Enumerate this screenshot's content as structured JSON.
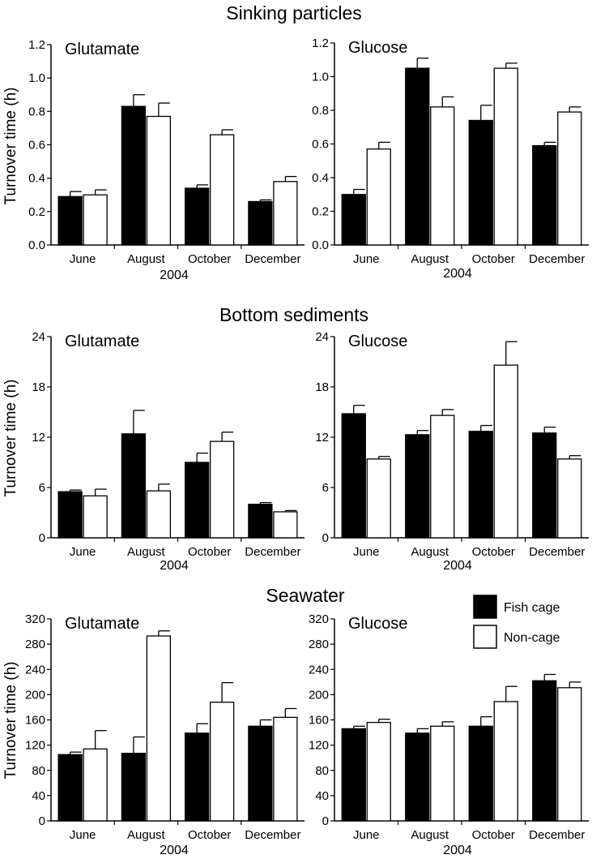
{
  "figure": {
    "rows": [
      {
        "title": "Sinking particles",
        "ylabel": "Turnover time (h)",
        "xlabel": "2004"
      },
      {
        "title": "Bottom sediments",
        "ylabel": "Turnover time (h)",
        "xlabel": "2004"
      },
      {
        "title": "Seawater",
        "ylabel": "Turnover time (h)",
        "xlabel": "2004"
      }
    ],
    "legend": {
      "fish_cage": "Fish cage",
      "non_cage": "Non-cage"
    },
    "colors": {
      "fish_cage": "#000000",
      "non_cage": "#ffffff"
    }
  },
  "chart_data": [
    {
      "type": "bar",
      "title": "Glutamate",
      "row_title": "Sinking particles",
      "ylabel": "Turnover time (h)",
      "xlabel": "2004",
      "categories": [
        "June",
        "August",
        "October",
        "December"
      ],
      "ylim": [
        0,
        1.2
      ],
      "yticks": [
        "0.0",
        "0.2",
        "0.4",
        "0.6",
        "0.8",
        "1.0",
        "1.2"
      ],
      "series": [
        {
          "name": "Fish cage",
          "values": [
            0.29,
            0.83,
            0.34,
            0.26
          ],
          "errors": [
            0.03,
            0.07,
            0.02,
            0.01
          ]
        },
        {
          "name": "Non-cage",
          "values": [
            0.3,
            0.77,
            0.66,
            0.38
          ],
          "errors": [
            0.03,
            0.08,
            0.03,
            0.03
          ]
        }
      ]
    },
    {
      "type": "bar",
      "title": "Glucose",
      "row_title": "Sinking particles",
      "ylabel": "",
      "xlabel": "2004",
      "categories": [
        "June",
        "August",
        "October",
        "December"
      ],
      "ylim": [
        0,
        1.2
      ],
      "yticks": [
        "0.0",
        "0.2",
        "0.4",
        "0.6",
        "0.8",
        "1.0",
        "1.2"
      ],
      "series": [
        {
          "name": "Fish cage",
          "values": [
            0.3,
            1.05,
            0.74,
            0.59
          ],
          "errors": [
            0.03,
            0.06,
            0.09,
            0.02
          ]
        },
        {
          "name": "Non-cage",
          "values": [
            0.57,
            0.82,
            1.05,
            0.79
          ],
          "errors": [
            0.04,
            0.06,
            0.03,
            0.03
          ]
        }
      ]
    },
    {
      "type": "bar",
      "title": "Glutamate",
      "row_title": "Bottom sediments",
      "ylabel": "Turnover time (h)",
      "xlabel": "2004",
      "categories": [
        "June",
        "August",
        "October",
        "December"
      ],
      "ylim": [
        0,
        24
      ],
      "yticks": [
        "0",
        "6",
        "12",
        "18",
        "24"
      ],
      "series": [
        {
          "name": "Fish cage",
          "values": [
            5.5,
            12.4,
            9.0,
            4.0
          ],
          "errors": [
            0.2,
            2.8,
            1.1,
            0.2
          ]
        },
        {
          "name": "Non-cage",
          "values": [
            5.0,
            5.6,
            11.5,
            3.1
          ],
          "errors": [
            0.8,
            0.8,
            1.1,
            0.15
          ]
        }
      ]
    },
    {
      "type": "bar",
      "title": "Glucose",
      "row_title": "Bottom sediments",
      "ylabel": "",
      "xlabel": "2004",
      "categories": [
        "June",
        "August",
        "October",
        "December"
      ],
      "ylim": [
        0,
        24
      ],
      "yticks": [
        "0",
        "6",
        "12",
        "18",
        "24"
      ],
      "series": [
        {
          "name": "Fish cage",
          "values": [
            14.8,
            12.3,
            12.7,
            12.5
          ],
          "errors": [
            1.0,
            0.5,
            0.7,
            0.7
          ]
        },
        {
          "name": "Non-cage",
          "values": [
            9.4,
            14.6,
            20.6,
            9.4
          ],
          "errors": [
            0.3,
            0.7,
            2.8,
            0.4
          ]
        }
      ]
    },
    {
      "type": "bar",
      "title": "Glutamate",
      "row_title": "Seawater",
      "ylabel": "Turnover time (h)",
      "xlabel": "2004",
      "categories": [
        "June",
        "August",
        "October",
        "December"
      ],
      "ylim": [
        0,
        320
      ],
      "yticks": [
        "0",
        "40",
        "80",
        "120",
        "160",
        "200",
        "240",
        "280",
        "320"
      ],
      "series": [
        {
          "name": "Fish cage",
          "values": [
            105,
            107,
            139,
            150
          ],
          "errors": [
            4,
            26,
            15,
            10
          ]
        },
        {
          "name": "Non-cage",
          "values": [
            114,
            293,
            188,
            164
          ],
          "errors": [
            29,
            8,
            31,
            14
          ]
        }
      ]
    },
    {
      "type": "bar",
      "title": "Glucose",
      "row_title": "Seawater",
      "ylabel": "",
      "xlabel": "2004",
      "categories": [
        "June",
        "August",
        "October",
        "December"
      ],
      "ylim": [
        0,
        320
      ],
      "yticks": [
        "0",
        "40",
        "80",
        "120",
        "160",
        "200",
        "240",
        "280",
        "320"
      ],
      "series": [
        {
          "name": "Fish cage",
          "values": [
            146,
            139,
            150,
            222
          ],
          "errors": [
            4,
            7,
            15,
            10
          ]
        },
        {
          "name": "Non-cage",
          "values": [
            156,
            150,
            189,
            211
          ],
          "errors": [
            5,
            7,
            24,
            9
          ]
        }
      ]
    }
  ]
}
